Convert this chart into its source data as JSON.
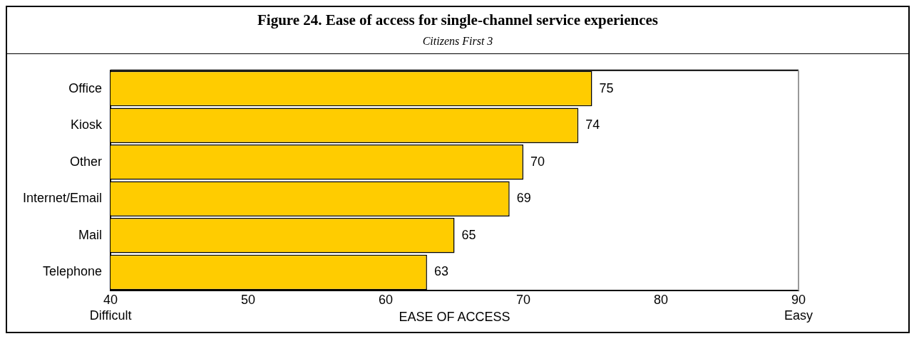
{
  "chart_data": {
    "type": "bar",
    "orientation": "horizontal",
    "title": "Figure 24. Ease of access for single-channel service experiences",
    "subtitle": "Citizens First 3",
    "xlabel": "EASE OF ACCESS",
    "categories": [
      "Office",
      "Kiosk",
      "Other",
      "Internet/Email",
      "Mail",
      "Telephone"
    ],
    "values": [
      75,
      74,
      70,
      69,
      65,
      63
    ],
    "color": "#ffcc00",
    "xlim": [
      40,
      90
    ],
    "xticks": [
      {
        "value": 40,
        "label": "40\nDifficult"
      },
      50,
      60,
      70,
      80,
      {
        "value": 90,
        "label": "90\nEasy"
      }
    ],
    "data_labels": true,
    "grid": false,
    "legend": false
  }
}
